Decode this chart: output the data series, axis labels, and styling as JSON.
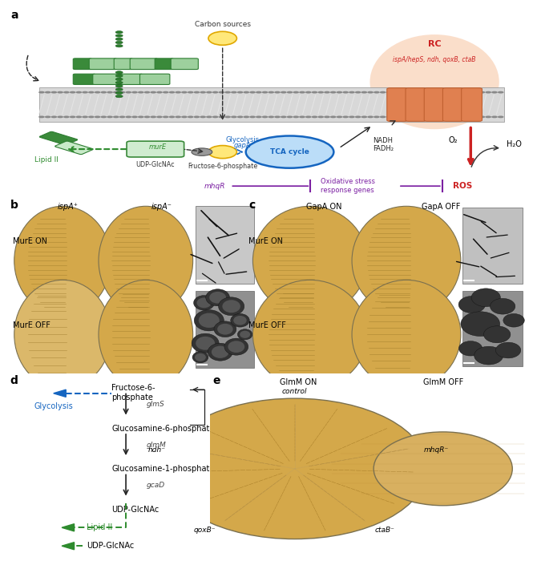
{
  "bg_color": "#ffffff",
  "panel_a": {
    "label": "a",
    "mem_color": "#c8c8c8",
    "mem_stripe_color": "#e0e0e0",
    "mem_dot_color": "#777777",
    "rc_fill": "#f5c8a8",
    "rc_border": "#d07040",
    "rc_text": "RC",
    "rc_text_color": "#cc2222",
    "rc_genes": "ispA/hepS, ndh, qoxB, ctaB",
    "rc_genes_color": "#cc2222",
    "tca_fill": "#bbddf8",
    "tca_border": "#1565C0",
    "tca_text": "TCA cycle",
    "tca_text_color": "#1565C0",
    "carbon_fill": "#ffe06a",
    "carbon_border": "#e0a800",
    "carbon_text": "Carbon sources",
    "fruct_fill": "#ffe06a",
    "fruct_border": "#e0a800",
    "fruct_text": "Fructose-6-phosphate",
    "glycolysis_text": "Glycolysis",
    "glycolysis_color": "#1565C0",
    "gapA_text": "gapA",
    "gapA_color": "#1565C0",
    "nadh_text": "NADH\nFADH₂",
    "o2_text": "O₂",
    "h2o_text": "H₂O",
    "mhqr_text": "mhqR",
    "mhqr_color": "#7b1fa2",
    "oxstress_text": "Oxidative stress\nresponse genes",
    "oxstress_color": "#7b1fa2",
    "ros_text": "ROS",
    "ros_color": "#cc2222",
    "lipid2_text": "Lipid II",
    "lipid2_color": "#2e8b2e",
    "mure_text": "murE",
    "mure_color": "#2e8b2e",
    "udp_text": "UDP-GlcNAc",
    "green_dark": "#3a8a3a",
    "green_mid": "#7abf7a",
    "green_light": "#b8e0b8",
    "green_bead": "#2d7d2d"
  },
  "panel_b": {
    "label": "b",
    "ispa_plus": "ispA⁺",
    "ispa_minus": "ispA⁻",
    "mure_on": "MurE ON",
    "mure_off": "MurE OFF",
    "plate_tan": "#d4aa5a",
    "plate_edge": "#8a8060",
    "micro_bg_light": "#c0c0c0",
    "micro_bg_dark": "#909090"
  },
  "panel_c": {
    "label": "c",
    "gapa_on": "GapA ON",
    "gapa_off": "GapA OFF",
    "mure_on": "MurE ON",
    "mure_off": "MurE OFF"
  },
  "panel_d": {
    "label": "d",
    "fruct_text": "Fructose-6-\nphosphate",
    "glycolysis_text": "Glycolysis",
    "glycolysis_color": "#1565C0",
    "glmS_text": "glmS",
    "glmM_text": "glmM",
    "gcaD_text": "gcaD",
    "gluc6p_text": "Glucosamine-6-phosphate",
    "gluc1p_text": "Glucosamine-1-phosphate",
    "udp_text": "UDP-GlcNAc",
    "lipid2_text": "Lipid II",
    "lipid2_color": "#2e8b2e",
    "arrow_color": "#222222",
    "blue_color": "#1565C0",
    "green_color": "#2e8b2e"
  },
  "panel_e": {
    "label": "e",
    "glmm_on": "GlmM ON",
    "glmm_off": "GlmM OFF",
    "control": "control",
    "mhqr": "mhqR⁻",
    "ndh": "ndh⁻",
    "ctab": "ctaB⁻",
    "qoxb": "qoxB⁻",
    "plate_tan": "#d4aa5a",
    "plate_edge": "#8a8060"
  }
}
